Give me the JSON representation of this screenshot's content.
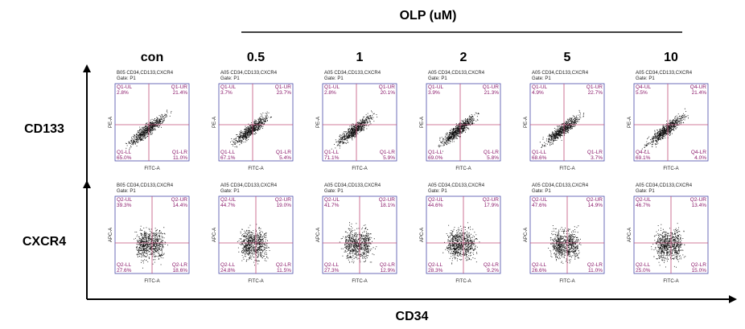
{
  "header": {
    "title": "OLP (uM)"
  },
  "columns": [
    "con",
    "0.5",
    "1",
    "2",
    "5",
    "10"
  ],
  "x_label": "CD34",
  "rows": [
    {
      "label": "CD133",
      "panels": [
        {
          "title": "B05 CD34,CD133,CXCR4",
          "gate": "Gate: P1",
          "y_axis": "PE-A",
          "x_axis": "FITC-A",
          "ul": {
            "name": "Q1-UL",
            "value": "2.8%"
          },
          "ur": {
            "name": "Q1-UR",
            "value": "21.4%"
          },
          "ll": {
            "name": "Q1-LL",
            "value": "65.0%"
          },
          "lr": {
            "name": "Q1-LR",
            "value": "11.0%"
          }
        },
        {
          "title": "A05 CD34,CD133,CXCR4",
          "gate": "Gate: P1",
          "y_axis": "PE-A",
          "x_axis": "FITC-A",
          "ul": {
            "name": "Q1-UL",
            "value": "3.7%"
          },
          "ur": {
            "name": "Q1-UR",
            "value": "23.7%"
          },
          "ll": {
            "name": "Q1-LL",
            "value": "67.1%"
          },
          "lr": {
            "name": "Q1-LR",
            "value": "5.4%"
          }
        },
        {
          "title": "A05 CD34,CD133,CXCR4",
          "gate": "Gate: P1",
          "y_axis": "PE-A",
          "x_axis": "FITC-A",
          "ul": {
            "name": "Q1-UL",
            "value": "2.8%"
          },
          "ur": {
            "name": "Q1-UR",
            "value": "20.1%"
          },
          "ll": {
            "name": "Q1-LL",
            "value": "71.1%"
          },
          "lr": {
            "name": "Q1-LR",
            "value": "5.9%"
          }
        },
        {
          "title": "A05 CD34,CD133,CXCR4",
          "gate": "Gate: P1",
          "y_axis": "PE-A",
          "x_axis": "FITC-A",
          "ul": {
            "name": "Q1-UL",
            "value": "3.9%"
          },
          "ur": {
            "name": "Q1-UR",
            "value": "21.3%"
          },
          "ll": {
            "name": "Q1-LL",
            "value": "69.0%"
          },
          "lr": {
            "name": "Q1-LR",
            "value": "5.8%"
          }
        },
        {
          "title": "A05 CD34,CD133,CXCR4",
          "gate": "Gate: P1",
          "y_axis": "PE-A",
          "x_axis": "FITC-A",
          "ul": {
            "name": "Q1-UL",
            "value": "4.9%"
          },
          "ur": {
            "name": "Q1-UR",
            "value": "22.7%"
          },
          "ll": {
            "name": "Q1-LL",
            "value": "68.6%"
          },
          "lr": {
            "name": "Q1-LR",
            "value": "3.7%"
          }
        },
        {
          "title": "A05 CD34,CD133,CXCR4",
          "gate": "Gate: P1",
          "y_axis": "PE-A",
          "x_axis": "FITC-A",
          "ul": {
            "name": "Q4-UL",
            "value": "5.5%"
          },
          "ur": {
            "name": "Q4-UR",
            "value": "21.4%"
          },
          "ll": {
            "name": "Q4-LL",
            "value": "69.1%"
          },
          "lr": {
            "name": "Q4-LR",
            "value": "4.0%"
          }
        }
      ]
    },
    {
      "label": "CXCR4",
      "panels": [
        {
          "title": "B05 CD34,CD133,CXCR4",
          "gate": "Gate: P1",
          "y_axis": "APC-A",
          "x_axis": "FITC-A",
          "ul": {
            "name": "Q2-UL",
            "value": "39.3%"
          },
          "ur": {
            "name": "Q2-UR",
            "value": "14.4%"
          },
          "ll": {
            "name": "Q2-LL",
            "value": "27.6%"
          },
          "lr": {
            "name": "Q2-LR",
            "value": "18.6%"
          }
        },
        {
          "title": "A05 CD34,CD133,CXCR4",
          "gate": "Gate: P1",
          "y_axis": "APC-A",
          "x_axis": "FITC-A",
          "ul": {
            "name": "Q2-UL",
            "value": "44.7%"
          },
          "ur": {
            "name": "Q2-UR",
            "value": "19.0%"
          },
          "ll": {
            "name": "Q2-LL",
            "value": "24.8%"
          },
          "lr": {
            "name": "Q2-LR",
            "value": "11.5%"
          }
        },
        {
          "title": "A05 CD34,CD133,CXCR4",
          "gate": "Gate: P1",
          "y_axis": "APC-A",
          "x_axis": "FITC-A",
          "ul": {
            "name": "Q2-UL",
            "value": "41.7%"
          },
          "ur": {
            "name": "Q2-UR",
            "value": "18.1%"
          },
          "ll": {
            "name": "Q2-LL",
            "value": "27.3%"
          },
          "lr": {
            "name": "Q2-LR",
            "value": "12.9%"
          }
        },
        {
          "title": "A05 CD34,CD133,CXCR4",
          "gate": "Gate: P1",
          "y_axis": "APC-A",
          "x_axis": "FITC-A",
          "ul": {
            "name": "Q2-UL",
            "value": "44.6%"
          },
          "ur": {
            "name": "Q2-UR",
            "value": "17.9%"
          },
          "ll": {
            "name": "Q2-LL",
            "value": "28.3%"
          },
          "lr": {
            "name": "Q2-LR",
            "value": "9.2%"
          }
        },
        {
          "title": "A05 CD34,CD133,CXCR4",
          "gate": "Gate: P1",
          "y_axis": "APC-A",
          "x_axis": "FITC-A",
          "ul": {
            "name": "Q2-UL",
            "value": "47.6%"
          },
          "ur": {
            "name": "Q2-UR",
            "value": "14.9%"
          },
          "ll": {
            "name": "Q2-LL",
            "value": "26.6%"
          },
          "lr": {
            "name": "Q2-LR",
            "value": "11.0%"
          }
        },
        {
          "title": "A05 CD34,CD133,CXCR4",
          "gate": "Gate: P1",
          "y_axis": "APC-A",
          "x_axis": "FITC-A",
          "ul": {
            "name": "Q2-UL",
            "value": "46.7%"
          },
          "ur": {
            "name": "Q2-UR",
            "value": "13.4%"
          },
          "ll": {
            "name": "Q2-LL",
            "value": "25.0%"
          },
          "lr": {
            "name": "Q2-LR",
            "value": "15.0%"
          }
        }
      ]
    }
  ]
}
